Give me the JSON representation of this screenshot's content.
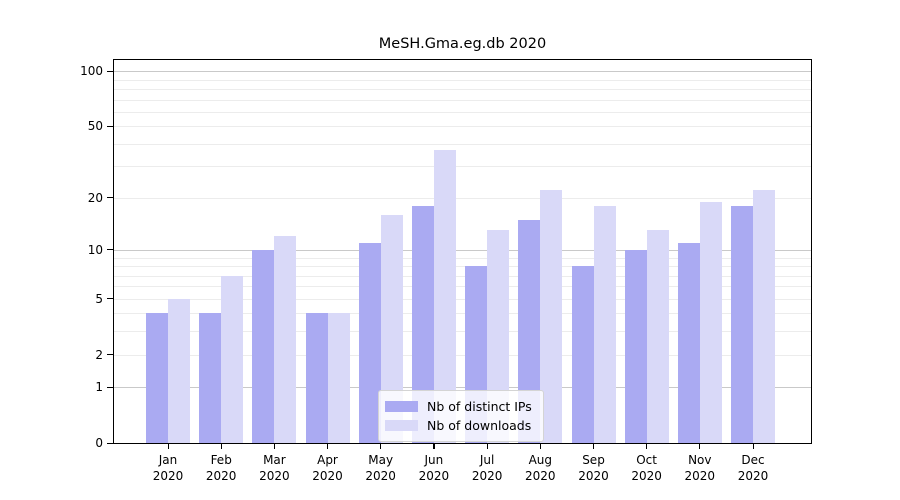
{
  "chart_data": {
    "type": "bar",
    "title": "MeSH.Gma.eg.db 2020",
    "categories": [
      {
        "month": "Jan",
        "year": "2020"
      },
      {
        "month": "Feb",
        "year": "2020"
      },
      {
        "month": "Mar",
        "year": "2020"
      },
      {
        "month": "Apr",
        "year": "2020"
      },
      {
        "month": "May",
        "year": "2020"
      },
      {
        "month": "Jun",
        "year": "2020"
      },
      {
        "month": "Jul",
        "year": "2020"
      },
      {
        "month": "Aug",
        "year": "2020"
      },
      {
        "month": "Sep",
        "year": "2020"
      },
      {
        "month": "Oct",
        "year": "2020"
      },
      {
        "month": "Nov",
        "year": "2020"
      },
      {
        "month": "Dec",
        "year": "2020"
      }
    ],
    "series": [
      {
        "name": "Nb of distinct IPs",
        "color": "#aaaaf2",
        "values": [
          4,
          4,
          10,
          4,
          11,
          18,
          8,
          15,
          8,
          10,
          11,
          18
        ]
      },
      {
        "name": "Nb of downloads",
        "color": "#d9d9f8",
        "values": [
          5,
          7,
          12,
          4,
          16,
          37,
          13,
          22,
          18,
          13,
          19,
          22
        ]
      }
    ],
    "yscale": "log1p",
    "ylim": [
      0,
      115
    ],
    "yticks": [
      0,
      1,
      2,
      5,
      10,
      20,
      50,
      100
    ],
    "grid_minor": [
      2,
      3,
      4,
      5,
      6,
      7,
      8,
      9,
      20,
      30,
      40,
      50,
      60,
      70,
      80,
      90
    ],
    "grid_major": [
      1,
      10,
      100
    ],
    "grid": true,
    "legend_position": "lower-center",
    "colors": {
      "axis": "#000000",
      "grid_minor": "#ececec",
      "grid_major": "#c9c9c9",
      "background": "#ffffff"
    }
  }
}
